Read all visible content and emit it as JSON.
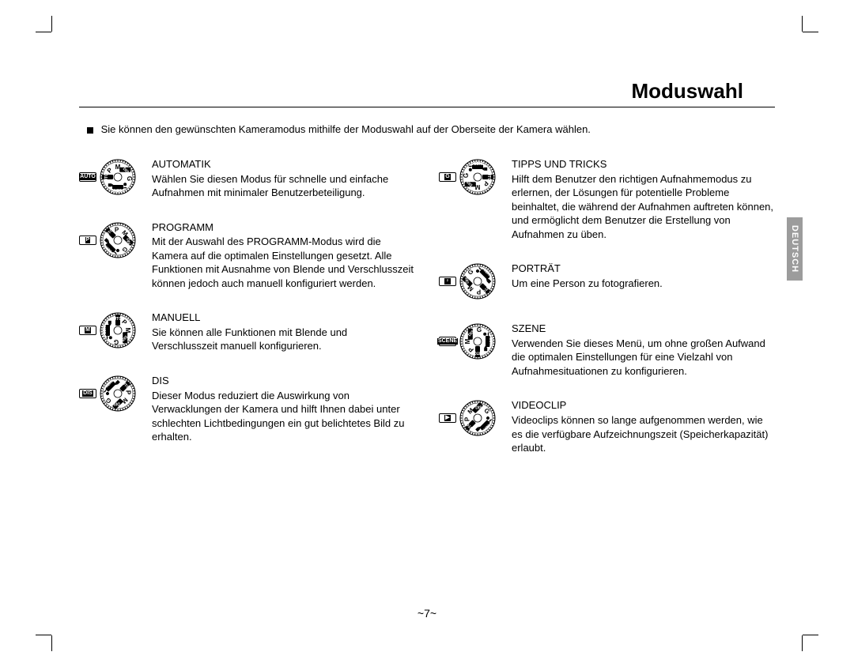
{
  "title": "Moduswahl",
  "intro": "Sie können den gewünschten Kameramodus mithilfe der Moduswahl auf der Oberseite der Kamera wählen.",
  "lang_tab": "DEUTSCH",
  "page_number": "~7~",
  "dial_positions": [
    "AUTO",
    "P",
    "M",
    "DIS",
    "G",
    "PORTRAIT",
    "SCENE",
    "VIDEO"
  ],
  "left_modes": [
    {
      "indicator": "AUTO",
      "heading": "AUTOMATIK",
      "body": "Wählen Sie diesen Modus für schnelle und einfache Aufnahmen mit minimaler Benutzerbeteiligung.",
      "rotation": 0
    },
    {
      "indicator": "P",
      "heading": "PROGRAMM",
      "body": "Mit der Auswahl des PROGRAMM-Modus wird die Kamera auf die optimalen Einstellungen gesetzt. Alle Funktionen mit Ausnahme von Blende und Verschlusszeit können jedoch auch manuell konfiguriert werden.",
      "rotation": 45
    },
    {
      "indicator": "M",
      "heading": "MANUELL",
      "body": "Sie können alle Funktionen mit Blende und Verschlusszeit manuell konfigurieren.",
      "rotation": 90
    },
    {
      "indicator": "DIS",
      "heading": "DIS",
      "body": "Dieser Modus reduziert die Auswirkung von Verwacklungen der Kamera und hilft Ihnen dabei unter schlechten Lichtbedingungen ein gut belichtetes Bild zu erhalten.",
      "rotation": 135
    }
  ],
  "right_modes": [
    {
      "indicator": "G",
      "heading": "TIPPS UND TRICKS",
      "body": "Hilft dem Benutzer den richtigen Aufnahmemodus zu erlernen, der Lösungen für potentielle Probleme beinhaltet, die während der Aufnahmen auftreten können, und ermöglicht dem Benutzer die Erstellung von Aufnahmen zu üben.",
      "rotation": 180
    },
    {
      "indicator": "♀",
      "heading": "PORTRÄT",
      "body": "Um eine Person zu fotografieren.",
      "rotation": 225
    },
    {
      "indicator": "SCENE",
      "heading": "SZENE",
      "body": "Verwenden Sie dieses Menü, um ohne großen Aufwand die optimalen Einstellungen für eine Vielzahl von Aufnahmesituationen zu konfigurieren.",
      "rotation": 270
    },
    {
      "indicator": "▶",
      "heading": "VIDEOCLIP",
      "body": "Videoclips können so lange aufgenommen werden, wie es die verfügbare Aufzeichnungszeit (Speicherkapazität) erlaubt.",
      "rotation": 315
    }
  ],
  "colors": {
    "text": "#000000",
    "background": "#ffffff",
    "tab_bg": "#9c9c9c",
    "tab_text": "#ffffff"
  },
  "typography": {
    "title_fontsize": 26,
    "body_fontsize": 13,
    "heading_fontsize": 13
  }
}
